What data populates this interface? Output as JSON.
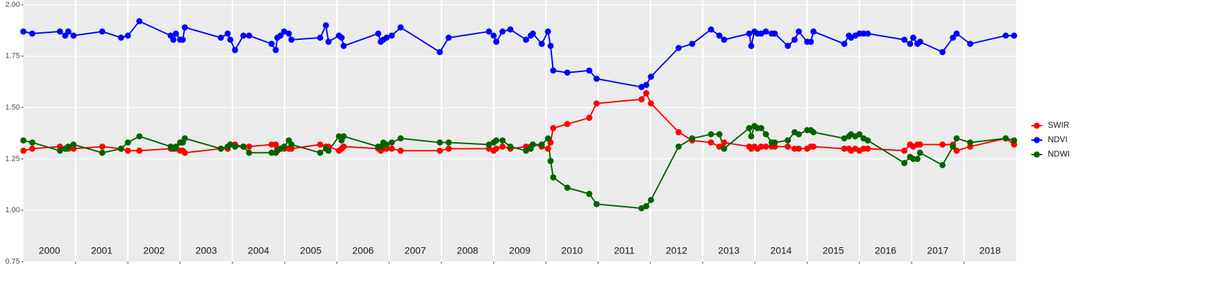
{
  "chart_data": {
    "type": "line",
    "x": [
      2000.0,
      2000.17,
      2000.7,
      2000.8,
      2000.86,
      2000.96,
      2001.51,
      2001.87,
      2002.0,
      2002.22,
      2002.82,
      2002.87,
      2002.92,
      2003.0,
      2003.05,
      2003.09,
      2003.78,
      2003.91,
      2003.96,
      2004.05,
      2004.21,
      2004.32,
      2004.75,
      2004.83,
      2004.86,
      2004.92,
      2004.99,
      2005.08,
      2005.13,
      2005.68,
      2005.79,
      2005.84,
      2006.04,
      2006.09,
      2006.13,
      2006.79,
      2006.84,
      2006.89,
      2006.95,
      2007.05,
      2007.22,
      2007.97,
      2008.14,
      2008.91,
      2009.0,
      2009.05,
      2009.17,
      2009.32,
      2009.62,
      2009.71,
      2009.75,
      2009.92,
      2010.04,
      2010.09,
      2010.14,
      2010.41,
      2010.83,
      2010.97,
      2011.83,
      2011.92,
      2012.01,
      2012.54,
      2012.8,
      2013.16,
      2013.32,
      2013.41,
      2013.89,
      2013.93,
      2013.99,
      2014.05,
      2014.12,
      2014.21,
      2014.32,
      2014.38,
      2014.63,
      2014.76,
      2014.84,
      2015.0,
      2015.07,
      2015.12,
      2015.71,
      2015.8,
      2015.84,
      2015.92,
      2016.0,
      2016.08,
      2016.16,
      2016.86,
      2016.97,
      2017.03,
      2017.11,
      2017.16,
      2017.59,
      2017.79,
      2017.86,
      2018.12,
      2018.8,
      2018.96
    ],
    "series": [
      {
        "name": "SWIR",
        "color": "#ff0000",
        "values": [
          1.29,
          1.3,
          1.31,
          1.3,
          1.3,
          1.3,
          1.31,
          1.3,
          1.29,
          1.29,
          1.3,
          1.3,
          1.3,
          1.29,
          1.29,
          1.28,
          1.3,
          1.3,
          1.32,
          1.32,
          1.31,
          1.31,
          1.32,
          1.32,
          1.3,
          1.3,
          1.3,
          1.3,
          1.3,
          1.32,
          1.31,
          1.31,
          1.29,
          1.3,
          1.31,
          1.3,
          1.29,
          1.3,
          1.3,
          1.3,
          1.29,
          1.29,
          1.3,
          1.3,
          1.29,
          1.3,
          1.31,
          1.3,
          1.31,
          1.31,
          1.32,
          1.31,
          1.3,
          1.33,
          1.4,
          1.42,
          1.45,
          1.52,
          1.54,
          1.57,
          1.52,
          1.38,
          1.34,
          1.33,
          1.31,
          1.33,
          1.31,
          1.3,
          1.31,
          1.3,
          1.31,
          1.31,
          1.31,
          1.31,
          1.31,
          1.3,
          1.3,
          1.3,
          1.31,
          1.31,
          1.3,
          1.3,
          1.29,
          1.3,
          1.29,
          1.3,
          1.3,
          1.29,
          1.32,
          1.31,
          1.32,
          1.32,
          1.32,
          1.32,
          1.29,
          1.31,
          1.35,
          1.32
        ]
      },
      {
        "name": "NDVI",
        "color": "#0000ff",
        "values": [
          1.87,
          1.86,
          1.87,
          1.85,
          1.87,
          1.85,
          1.87,
          1.84,
          1.85,
          1.92,
          1.85,
          1.83,
          1.86,
          1.83,
          1.83,
          1.89,
          1.84,
          1.86,
          1.83,
          1.78,
          1.85,
          1.85,
          1.81,
          1.78,
          1.84,
          1.85,
          1.87,
          1.86,
          1.83,
          1.84,
          1.9,
          1.82,
          1.85,
          1.84,
          1.8,
          1.86,
          1.82,
          1.83,
          1.84,
          1.85,
          1.89,
          1.77,
          1.84,
          1.87,
          1.85,
          1.82,
          1.87,
          1.88,
          1.83,
          1.85,
          1.86,
          1.81,
          1.87,
          1.8,
          1.68,
          1.67,
          1.68,
          1.64,
          1.6,
          1.61,
          1.65,
          1.79,
          1.81,
          1.88,
          1.85,
          1.83,
          1.86,
          1.8,
          1.87,
          1.86,
          1.86,
          1.87,
          1.86,
          1.86,
          1.8,
          1.83,
          1.87,
          1.82,
          1.82,
          1.87,
          1.81,
          1.85,
          1.84,
          1.85,
          1.86,
          1.86,
          1.86,
          1.83,
          1.81,
          1.84,
          1.81,
          1.82,
          1.77,
          1.84,
          1.86,
          1.81,
          1.85,
          1.85
        ]
      },
      {
        "name": "NDWI",
        "color": "#006400",
        "values": [
          1.34,
          1.33,
          1.29,
          1.3,
          1.31,
          1.32,
          1.28,
          1.3,
          1.33,
          1.36,
          1.31,
          1.3,
          1.31,
          1.33,
          1.33,
          1.35,
          1.3,
          1.31,
          1.32,
          1.31,
          1.31,
          1.28,
          1.28,
          1.28,
          1.29,
          1.3,
          1.31,
          1.34,
          1.32,
          1.28,
          1.3,
          1.29,
          1.36,
          1.34,
          1.36,
          1.31,
          1.31,
          1.33,
          1.32,
          1.33,
          1.35,
          1.33,
          1.33,
          1.32,
          1.33,
          1.34,
          1.34,
          1.31,
          1.29,
          1.3,
          1.32,
          1.32,
          1.35,
          1.24,
          1.16,
          1.11,
          1.08,
          1.03,
          1.01,
          1.02,
          1.05,
          1.31,
          1.35,
          1.37,
          1.37,
          1.3,
          1.4,
          1.36,
          1.41,
          1.4,
          1.4,
          1.37,
          1.33,
          1.33,
          1.34,
          1.38,
          1.37,
          1.39,
          1.39,
          1.38,
          1.35,
          1.36,
          1.37,
          1.36,
          1.37,
          1.35,
          1.34,
          1.23,
          1.26,
          1.25,
          1.25,
          1.28,
          1.22,
          1.31,
          1.35,
          1.33,
          1.35,
          1.34
        ]
      }
    ],
    "xlim": [
      2000,
      2019
    ],
    "xticks": [
      {
        "value": 2000.5,
        "label": "2000"
      },
      {
        "value": 2001.5,
        "label": "2001"
      },
      {
        "value": 2002.5,
        "label": "2002"
      },
      {
        "value": 2003.5,
        "label": "2003"
      },
      {
        "value": 2004.5,
        "label": "2004"
      },
      {
        "value": 2005.5,
        "label": "2005"
      },
      {
        "value": 2006.5,
        "label": "2006"
      },
      {
        "value": 2007.5,
        "label": "2007"
      },
      {
        "value": 2008.5,
        "label": "2008"
      },
      {
        "value": 2009.5,
        "label": "2009"
      },
      {
        "value": 2010.5,
        "label": "2010"
      },
      {
        "value": 2011.5,
        "label": "2011"
      },
      {
        "value": 2012.5,
        "label": "2012"
      },
      {
        "value": 2013.5,
        "label": "2013"
      },
      {
        "value": 2014.5,
        "label": "2014"
      },
      {
        "value": 2015.5,
        "label": "2015"
      },
      {
        "value": 2016.5,
        "label": "2016"
      },
      {
        "value": 2017.5,
        "label": "2017"
      },
      {
        "value": 2018.5,
        "label": "2018"
      }
    ],
    "xgrid": [
      2001,
      2002,
      2003,
      2004,
      2005,
      2006,
      2007,
      2008,
      2009,
      2010,
      2011,
      2012,
      2013,
      2014,
      2015,
      2016,
      2017,
      2018
    ],
    "ylim": [
      0.75,
      2.0
    ],
    "yticks": [
      {
        "value": 0.75,
        "label": "0.75"
      },
      {
        "value": 1.0,
        "label": "1.00"
      },
      {
        "value": 1.25,
        "label": "1.25"
      },
      {
        "value": 1.5,
        "label": "1.50"
      },
      {
        "value": 1.75,
        "label": "1.75"
      },
      {
        "value": 2.0,
        "label": "2.00"
      }
    ],
    "grid": true,
    "legend": "right"
  }
}
